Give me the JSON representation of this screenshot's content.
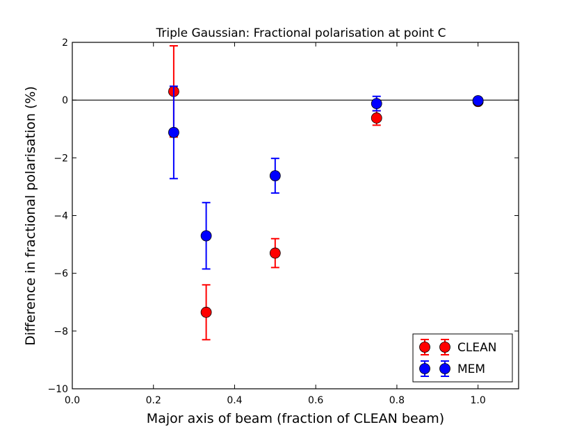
{
  "chart_data": {
    "type": "scatter",
    "title": "Triple Gaussian: Fractional polarisation at point C",
    "xlabel": "Major axis of beam (fraction of CLEAN beam)",
    "ylabel": "Difference in fractional polarisation (%)",
    "xlim": [
      0.0,
      1.1
    ],
    "ylim": [
      -10,
      2
    ],
    "xticks": [
      0.0,
      0.2,
      0.4,
      0.6,
      0.8,
      1.0
    ],
    "xtick_labels": [
      "0.0",
      "0.2",
      "0.4",
      "0.6",
      "0.8",
      "1.0"
    ],
    "yticks": [
      -10,
      -8,
      -6,
      -4,
      -2,
      0,
      2
    ],
    "ytick_labels": [
      "−10",
      "−8",
      "−6",
      "−4",
      "−2",
      "0",
      "2"
    ],
    "grid": false,
    "reference_line_y": 0,
    "legend": {
      "placement": "lower right"
    },
    "series": [
      {
        "name": "CLEAN",
        "color": "#ff0000",
        "points": [
          {
            "x": 0.25,
            "y": 0.3,
            "err": 1.58
          },
          {
            "x": 0.33,
            "y": -7.35,
            "err": 0.95
          },
          {
            "x": 0.5,
            "y": -5.3,
            "err": 0.5
          },
          {
            "x": 0.75,
            "y": -0.62,
            "err": 0.25
          },
          {
            "x": 1.0,
            "y": -0.05,
            "err": 0.08
          }
        ]
      },
      {
        "name": "MEM",
        "color": "#0000ff",
        "points": [
          {
            "x": 0.25,
            "y": -1.12,
            "err": 1.6
          },
          {
            "x": 0.33,
            "y": -4.7,
            "err": 1.15
          },
          {
            "x": 0.5,
            "y": -2.62,
            "err": 0.6
          },
          {
            "x": 0.75,
            "y": -0.12,
            "err": 0.25
          },
          {
            "x": 1.0,
            "y": -0.02,
            "err": 0.1
          }
        ]
      }
    ]
  }
}
